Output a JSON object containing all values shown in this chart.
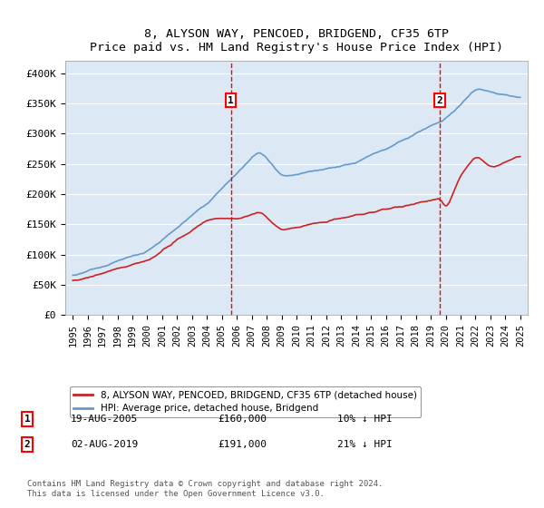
{
  "title": "8, ALYSON WAY, PENCOED, BRIDGEND, CF35 6TP",
  "subtitle": "Price paid vs. HM Land Registry's House Price Index (HPI)",
  "background_color": "#dce9f5",
  "plot_bg_color": "#dce9f5",
  "x_start_year": 1995,
  "x_end_year": 2025,
  "y_ticks": [
    0,
    50000,
    100000,
    150000,
    200000,
    250000,
    300000,
    350000,
    400000
  ],
  "y_tick_labels": [
    "£0",
    "£50K",
    "£100K",
    "£150K",
    "£200K",
    "£250K",
    "£300K",
    "£350K",
    "£400K"
  ],
  "hpi_color": "#6699cc",
  "price_color": "#cc2222",
  "marker1_year": 2005.6,
  "marker1_price": 160000,
  "marker1_label": "1",
  "marker1_date": "19-AUG-2005",
  "marker1_amount": "£160,000",
  "marker1_hpi": "10% ↓ HPI",
  "marker2_year": 2019.6,
  "marker2_price": 191000,
  "marker2_label": "2",
  "marker2_date": "02-AUG-2019",
  "marker2_amount": "£191,000",
  "marker2_hpi": "21% ↓ HPI",
  "legend_line1": "8, ALYSON WAY, PENCOED, BRIDGEND, CF35 6TP (detached house)",
  "legend_line2": "HPI: Average price, detached house, Bridgend",
  "footer": "Contains HM Land Registry data © Crown copyright and database right 2024.\nThis data is licensed under the Open Government Licence v3.0."
}
